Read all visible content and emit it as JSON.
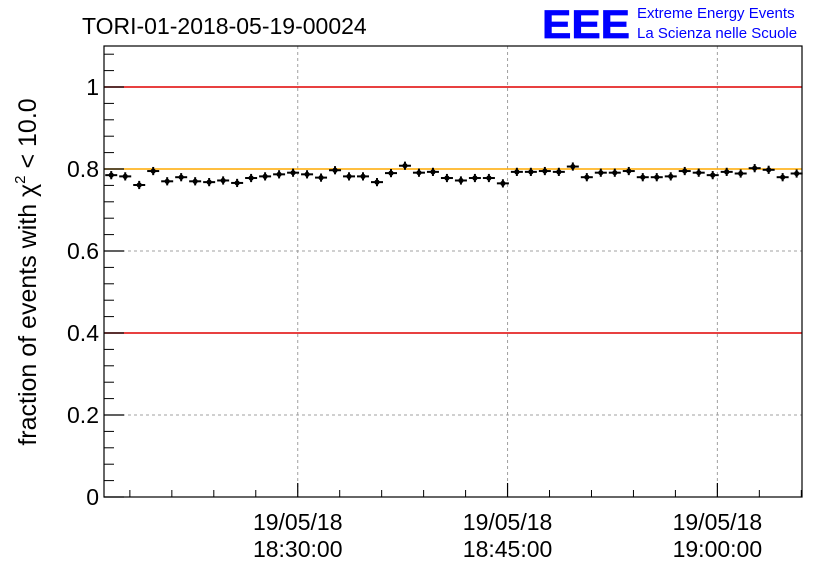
{
  "chart_data": {
    "type": "scatter",
    "title": "TORI-01-2018-05-19-00024",
    "ylabel": {
      "prefix": "fraction of events with ",
      "chi": "χ",
      "sup": "2",
      "suffix": " < 10.0"
    },
    "xlabel": "",
    "x_ticks": [
      {
        "date": "19/05/18",
        "time": "18:30:00"
      },
      {
        "date": "19/05/18",
        "time": "18:45:00"
      },
      {
        "date": "19/05/18",
        "time": "19:00:00"
      }
    ],
    "y_ticks": [
      "0",
      "0.2",
      "0.4",
      "0.6",
      "0.8",
      "1"
    ],
    "xlim": [
      "2018-05-19 18:16:09",
      "2018-05-19 19:06:03"
    ],
    "ylim": [
      0,
      1.1
    ],
    "grid": true,
    "reference_lines": [
      {
        "y": 1.0,
        "color": "#e00000"
      },
      {
        "y": 0.4,
        "color": "#e00000"
      },
      {
        "y": 0.8,
        "color": "#ffaa00"
      }
    ],
    "series": [
      {
        "color": "#000000",
        "marker": "cross-with-error-bars",
        "x": [
          "18:16:40",
          "18:17:40",
          "18:18:40",
          "18:19:40",
          "18:20:40",
          "18:21:40",
          "18:22:40",
          "18:23:40",
          "18:24:40",
          "18:25:40",
          "18:26:40",
          "18:27:40",
          "18:28:40",
          "18:29:40",
          "18:30:40",
          "18:31:40",
          "18:32:40",
          "18:33:40",
          "18:34:40",
          "18:35:40",
          "18:36:40",
          "18:37:40",
          "18:38:40",
          "18:39:40",
          "18:40:40",
          "18:41:40",
          "18:42:40",
          "18:43:40",
          "18:44:40",
          "18:45:40",
          "18:46:40",
          "18:47:40",
          "18:48:40",
          "18:49:40",
          "18:50:40",
          "18:51:40",
          "18:52:40",
          "18:53:40",
          "18:54:40",
          "18:55:40",
          "18:56:40",
          "18:57:40",
          "18:58:40",
          "18:59:40",
          "19:00:40",
          "19:01:40",
          "19:02:40",
          "19:03:40",
          "19:04:40",
          "19:05:40"
        ],
        "values": [
          0.785,
          0.782,
          0.761,
          0.795,
          0.77,
          0.78,
          0.77,
          0.768,
          0.772,
          0.766,
          0.778,
          0.782,
          0.787,
          0.791,
          0.787,
          0.779,
          0.797,
          0.782,
          0.782,
          0.768,
          0.79,
          0.808,
          0.791,
          0.793,
          0.778,
          0.772,
          0.778,
          0.778,
          0.765,
          0.793,
          0.793,
          0.795,
          0.793,
          0.806,
          0.78,
          0.791,
          0.791,
          0.795,
          0.78,
          0.78,
          0.782,
          0.795,
          0.791,
          0.785,
          0.793,
          0.789,
          0.802,
          0.798,
          0.78,
          0.789
        ],
        "y_errors": 0.01
      }
    ]
  },
  "logo": {
    "mark": "EEE",
    "line1": "Extreme Energy Events",
    "line2": "La Scienza nelle Scuole",
    "color": "#0000ff"
  }
}
